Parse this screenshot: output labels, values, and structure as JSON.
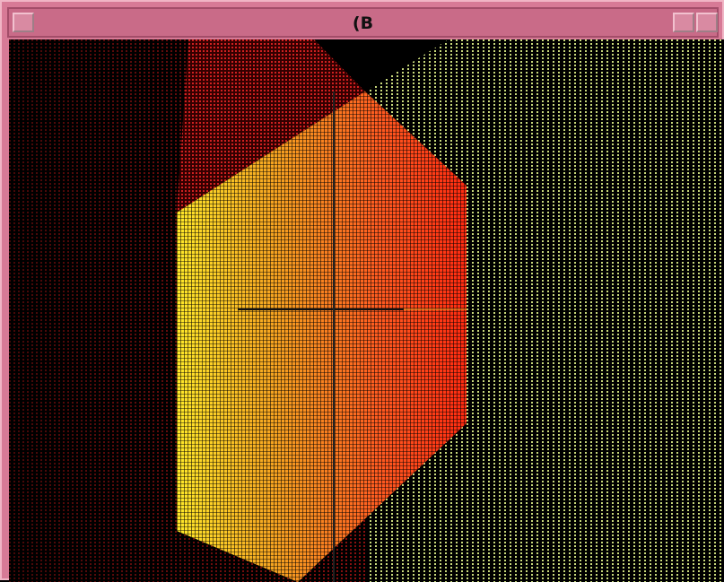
{
  "window": {
    "title": "(B"
  }
}
